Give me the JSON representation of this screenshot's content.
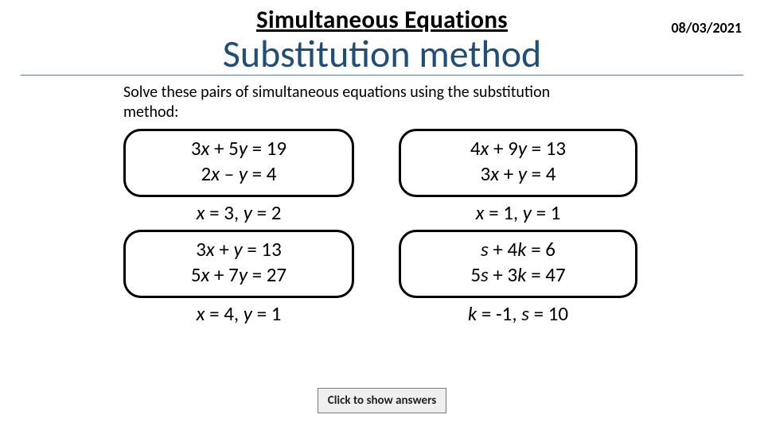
{
  "date": "08/03/2021",
  "title_line1": "Simultaneous Equations",
  "title_line2": "Substitution method",
  "instruction": "Solve these pairs of simultaneous equations using the substitution method:",
  "problems": [
    {
      "eq1_a": "3",
      "eq1_v1": "x",
      "eq1_mid": " + 5",
      "eq1_v2": "y",
      "eq1_rhs": " = 19",
      "eq2_a": "2",
      "eq2_v1": "x",
      "eq2_mid": " – ",
      "eq2_v2": "y",
      "eq2_rhs": " = 4",
      "ans_v1": "x",
      "ans_r1": " = 3, ",
      "ans_v2": "y",
      "ans_r2": " = 2"
    },
    {
      "eq1_a": "4",
      "eq1_v1": "x",
      "eq1_mid": " + 9",
      "eq1_v2": "y",
      "eq1_rhs": " = 13",
      "eq2_a": "3",
      "eq2_v1": "x",
      "eq2_mid": " + ",
      "eq2_v2": "y",
      "eq2_rhs": " = 4",
      "ans_v1": "x",
      "ans_r1": " = 1, ",
      "ans_v2": "y",
      "ans_r2": " = 1"
    },
    {
      "eq1_a": "3",
      "eq1_v1": "x",
      "eq1_mid": " + ",
      "eq1_v2": "y",
      "eq1_rhs": " = 13",
      "eq2_a": "5",
      "eq2_v1": "x",
      "eq2_mid": " + 7",
      "eq2_v2": "y",
      "eq2_rhs": " = 27",
      "ans_v1": "x",
      "ans_r1": " = 4, ",
      "ans_v2": "y",
      "ans_r2": " = 1"
    },
    {
      "eq1_a": "",
      "eq1_v1": "s",
      "eq1_mid": " + 4",
      "eq1_v2": "k",
      "eq1_rhs": " = 6",
      "eq2_a": "5",
      "eq2_v1": "s",
      "eq2_mid": " + 3",
      "eq2_v2": "k",
      "eq2_rhs": " = 47",
      "ans_v1": "k",
      "ans_r1": " = -1, ",
      "ans_v2": "s",
      "ans_r2": " = 10"
    }
  ],
  "button_label": "Click to show answers",
  "style": {
    "title1_fontsize": 31,
    "title1_weight": 800,
    "title2_fontsize": 48,
    "title2_color": "#1f4e79",
    "instr_fontsize": 20,
    "eq_fontsize": 25,
    "ans_fontsize": 25,
    "box_border_color": "#000000",
    "box_border_width": 3,
    "box_radius": 22,
    "rule_color": "#5b7c9b",
    "btn_bg": "#efefef",
    "btn_border": "#7a7a7a",
    "btn_fontsize": 15,
    "background": "#ffffff"
  }
}
